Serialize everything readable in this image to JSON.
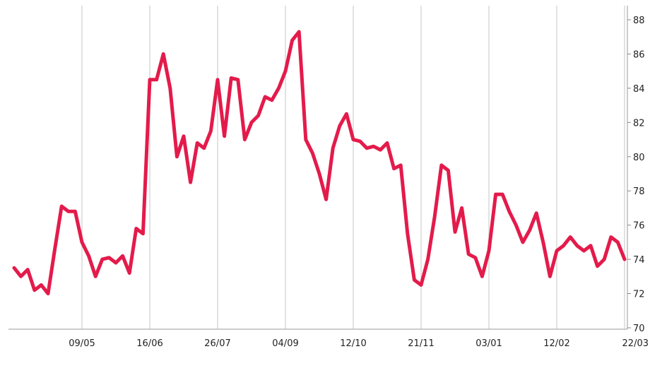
{
  "chart_data": {
    "type": "line",
    "categories": [
      null,
      null,
      null,
      null,
      null,
      null,
      null,
      null,
      null,
      null,
      "09/05",
      null,
      null,
      null,
      null,
      null,
      null,
      null,
      null,
      null,
      "16/06",
      null,
      null,
      null,
      null,
      null,
      null,
      null,
      null,
      null,
      "26/07",
      null,
      null,
      null,
      null,
      null,
      null,
      null,
      null,
      null,
      "04/09",
      null,
      null,
      null,
      null,
      null,
      null,
      null,
      null,
      null,
      "12/10",
      null,
      null,
      null,
      null,
      null,
      null,
      null,
      null,
      null,
      "21/11",
      null,
      null,
      null,
      null,
      null,
      null,
      null,
      null,
      null,
      "03/01",
      null,
      null,
      null,
      null,
      null,
      null,
      null,
      null,
      null,
      "12/02",
      null,
      null,
      null,
      null,
      null,
      null,
      null,
      null,
      null,
      "22/03"
    ],
    "series": [
      {
        "color": "#e31b4b",
        "values": [
          73.5,
          73.0,
          73.4,
          72.2,
          72.5,
          72.0,
          74.6,
          77.1,
          76.8,
          76.8,
          75.0,
          74.2,
          73.0,
          74.0,
          74.1,
          73.8,
          74.2,
          73.2,
          75.8,
          75.5,
          84.5,
          84.5,
          86.0,
          84.0,
          80.0,
          81.2,
          78.5,
          80.8,
          80.5,
          81.5,
          84.5,
          81.2,
          84.6,
          84.5,
          81.0,
          82.0,
          82.4,
          83.5,
          83.3,
          84.0,
          85.0,
          86.8,
          87.3,
          81.0,
          80.2,
          79.0,
          77.5,
          80.5,
          81.8,
          82.5,
          81.0,
          80.9,
          80.5,
          80.6,
          80.4,
          80.8,
          79.3,
          79.5,
          75.5,
          72.8,
          72.5,
          74.0,
          76.5,
          79.5,
          79.2,
          75.6,
          77.0,
          74.3,
          74.1,
          73.0,
          74.5,
          77.8,
          77.8,
          76.8,
          76.0,
          75.0,
          75.7,
          76.7,
          75.0,
          73.0,
          74.5,
          74.8,
          75.3,
          74.8,
          74.5,
          74.8,
          73.6,
          74.0,
          75.3,
          75.0,
          74.0
        ]
      }
    ],
    "ylim": [
      70,
      88
    ],
    "yticks": [
      70,
      72,
      74,
      76,
      78,
      80,
      82,
      84,
      86,
      88
    ],
    "grid": true
  }
}
